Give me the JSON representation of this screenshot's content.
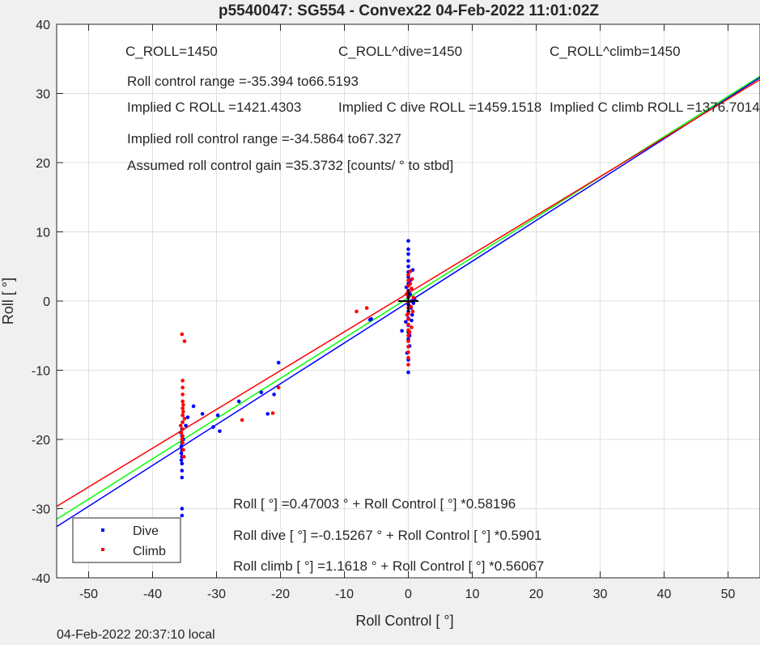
{
  "title": "p5540047: SG554 - Convex22 04-Feb-2022 11:01:02Z",
  "footer": "04-Feb-2022 20:37:10 local",
  "colors": {
    "dive": "#0000ff",
    "climb": "#ff0000",
    "all": "#00ff00",
    "cross": "#000000"
  },
  "info": {
    "c_roll": "C_ROLL=1450",
    "c_roll_dive": "C_ROLL^dive=1450",
    "c_roll_climb": "C_ROLL^climb=1450",
    "roll_control_range": "Roll control range =-35.394 to66.5193",
    "implied_c_roll": "Implied C ROLL =1421.4303",
    "implied_c_roll_dive": "Implied C dive ROLL =1459.1518",
    "implied_c_roll_climb": "Implied C climb ROLL =1376.7014",
    "implied_range": "Implied roll control range =-34.5864 to67.327",
    "assumed_gain": "Assumed roll control gain =35.3732 [counts/ ° to stbd]"
  },
  "equations": {
    "all": "Roll [ °] =0.47003 ° + Roll Control [ °] *0.58196",
    "dive": "Roll dive [ °] =-0.15267 ° + Roll Control [ °] *0.5901",
    "climb": "Roll climb [ °] =1.1618 ° + Roll Control [ °] *0.56067"
  },
  "chart_data": {
    "type": "scatter",
    "title": "p5540047: SG554 - Convex22 04-Feb-2022 11:01:02Z",
    "xlabel": "Roll Control [ °]",
    "ylabel": "Roll [ °]",
    "xlim": [
      -55,
      55
    ],
    "ylim": [
      -40,
      40
    ],
    "xticks": [
      -50,
      -40,
      -30,
      -20,
      -10,
      0,
      10,
      20,
      30,
      40,
      50
    ],
    "yticks": [
      -40,
      -30,
      -20,
      -10,
      0,
      10,
      20,
      30,
      40
    ],
    "grid": true,
    "legend": {
      "position": "bottom-left",
      "entries": [
        "Dive",
        "Climb"
      ]
    },
    "series": [
      {
        "name": "Dive",
        "points": [
          [
            -35.4,
            -18.5
          ],
          [
            -35.4,
            -19.5
          ],
          [
            -35.4,
            -20.5
          ],
          [
            -35.4,
            -21.5
          ],
          [
            -35.4,
            -22.5
          ],
          [
            -35.4,
            -23.5
          ],
          [
            -35.4,
            -24.5
          ],
          [
            -35.4,
            -25.5
          ],
          [
            -35.3,
            -17.5
          ],
          [
            -35.3,
            -16.5
          ],
          [
            -35.5,
            -21.0
          ],
          [
            -35.5,
            -22.0
          ],
          [
            -35.5,
            -23.0
          ],
          [
            -35.4,
            -30.0
          ],
          [
            -35.4,
            -31.0
          ],
          [
            -35.2,
            -20.0
          ],
          [
            -35.6,
            -19.0
          ],
          [
            -34.8,
            -18.0
          ],
          [
            -34.5,
            -16.8
          ],
          [
            -33.6,
            -15.2
          ],
          [
            -32.2,
            -16.3
          ],
          [
            -30.5,
            -18.2
          ],
          [
            -29.5,
            -18.8
          ],
          [
            -29.8,
            -16.5
          ],
          [
            -26.5,
            -14.5
          ],
          [
            -23.0,
            -13.2
          ],
          [
            -22.0,
            -16.3
          ],
          [
            -21.0,
            -13.5
          ],
          [
            -20.3,
            -8.9
          ],
          [
            -6.0,
            -2.7
          ],
          [
            -5.8,
            -2.6
          ],
          [
            -1.0,
            -4.3
          ],
          [
            0.0,
            8.7
          ],
          [
            0.0,
            7.5
          ],
          [
            0.0,
            6.8
          ],
          [
            0.0,
            5.8
          ],
          [
            0.0,
            5.0
          ],
          [
            0.0,
            4.2
          ],
          [
            0.0,
            3.5
          ],
          [
            0.0,
            2.5
          ],
          [
            0.0,
            1.5
          ],
          [
            0.0,
            0.5
          ],
          [
            0.0,
            -0.5
          ],
          [
            0.0,
            -1.5
          ],
          [
            0.0,
            -2.5
          ],
          [
            0.0,
            -3.5
          ],
          [
            0.0,
            -4.5
          ],
          [
            0.0,
            -5.5
          ],
          [
            0.0,
            -10.3
          ],
          [
            0.0,
            -8.5
          ],
          [
            0.2,
            -6.5
          ],
          [
            -0.2,
            -7.5
          ],
          [
            0.3,
            1.0
          ],
          [
            0.5,
            0.0
          ],
          [
            0.4,
            -1.0
          ],
          [
            0.6,
            -2.0
          ],
          [
            -0.3,
            2.0
          ],
          [
            0.8,
            -0.3
          ],
          [
            1.0,
            0.2
          ],
          [
            0.3,
            3.0
          ],
          [
            0.7,
            4.5
          ],
          [
            0.5,
            -2.8
          ],
          [
            0.2,
            -5.0
          ],
          [
            -0.4,
            -3.0
          ],
          [
            0.1,
            0.8
          ]
        ]
      },
      {
        "name": "Climb",
        "points": [
          [
            -35.4,
            -4.8
          ],
          [
            -35.0,
            -5.8
          ],
          [
            -35.3,
            -11.5
          ],
          [
            -35.3,
            -12.5
          ],
          [
            -35.3,
            -13.5
          ],
          [
            -35.3,
            -14.5
          ],
          [
            -35.3,
            -15.5
          ],
          [
            -35.3,
            -16.5
          ],
          [
            -35.3,
            -17.5
          ],
          [
            -35.3,
            -18.5
          ],
          [
            -35.3,
            -19.5
          ],
          [
            -35.3,
            -20.5
          ],
          [
            -35.2,
            -21.5
          ],
          [
            -35.5,
            -19.0
          ],
          [
            -35.6,
            -18.0
          ],
          [
            -35.0,
            -17.0
          ],
          [
            -35.1,
            -22.5
          ],
          [
            -35.4,
            -20.0
          ],
          [
            -35.2,
            -15.0
          ],
          [
            -35.2,
            -16.0
          ],
          [
            -26.0,
            -17.2
          ],
          [
            -21.2,
            -16.2
          ],
          [
            -20.3,
            -12.5
          ],
          [
            -8.1,
            -1.5
          ],
          [
            -6.5,
            -1.0
          ],
          [
            0.0,
            3.8
          ],
          [
            0.0,
            3.0
          ],
          [
            0.0,
            2.2
          ],
          [
            0.0,
            1.4
          ],
          [
            0.0,
            0.6
          ],
          [
            0.0,
            -0.2
          ],
          [
            0.0,
            -1.0
          ],
          [
            0.0,
            -1.8
          ],
          [
            0.0,
            -2.6
          ],
          [
            0.0,
            -3.4
          ],
          [
            0.0,
            -4.2
          ],
          [
            0.0,
            -5.0
          ],
          [
            0.0,
            -5.8
          ],
          [
            0.0,
            -6.6
          ],
          [
            0.0,
            -7.4
          ],
          [
            0.0,
            -8.2
          ],
          [
            0.0,
            -9.2
          ],
          [
            0.3,
            2.5
          ],
          [
            0.5,
            1.8
          ],
          [
            0.6,
            3.2
          ],
          [
            0.4,
            -0.8
          ],
          [
            -0.3,
            1.0
          ],
          [
            0.2,
            -4.5
          ],
          [
            0.8,
            0.5
          ],
          [
            0.7,
            -1.5
          ],
          [
            0.3,
            4.3
          ],
          [
            -0.2,
            -2.0
          ],
          [
            0.5,
            -3.8
          ]
        ]
      }
    ],
    "fits": [
      {
        "name": "Roll",
        "intercept": 0.47003,
        "slope": 0.58196
      },
      {
        "name": "Roll dive",
        "intercept": -0.15267,
        "slope": 0.5901
      },
      {
        "name": "Roll climb",
        "intercept": 1.1618,
        "slope": 0.56067
      }
    ]
  }
}
